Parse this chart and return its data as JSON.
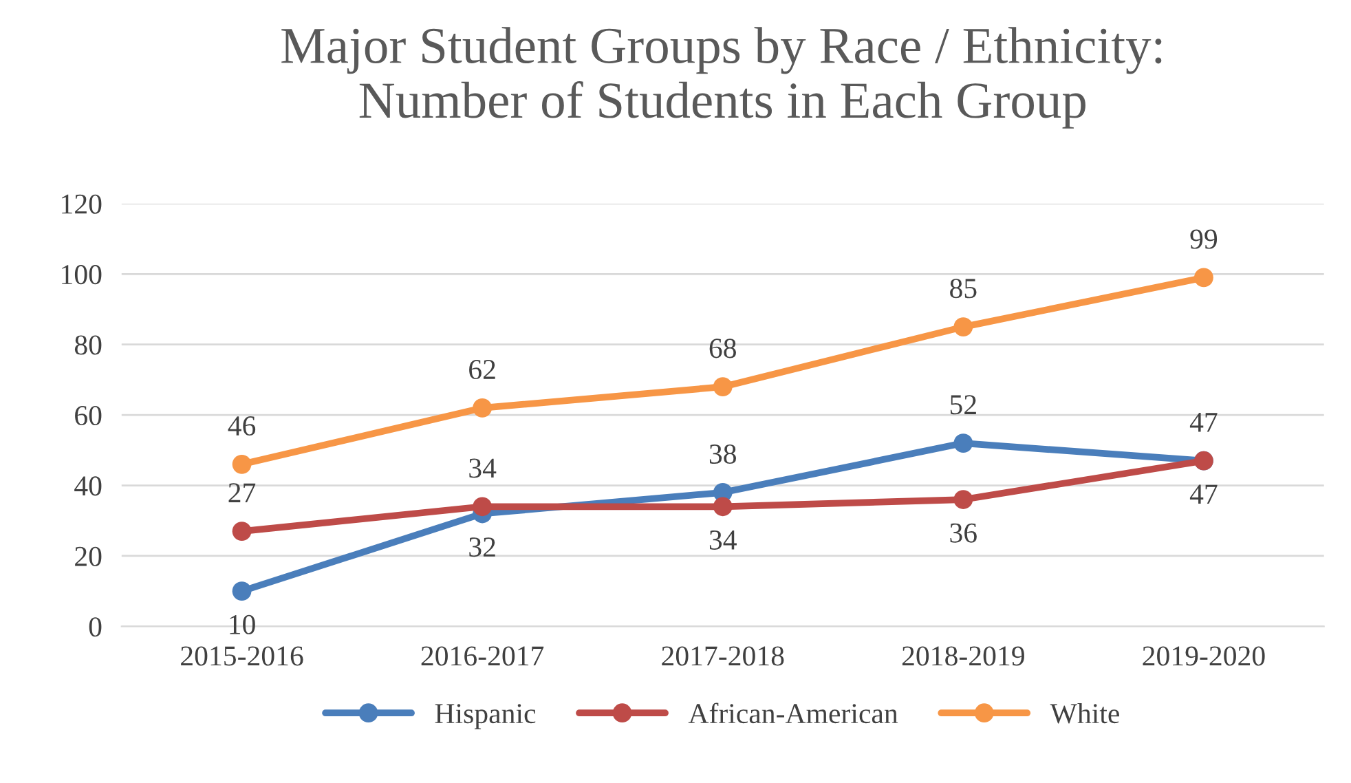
{
  "chart_data": {
    "type": "line",
    "title": "Major Student Groups by Race / Ethnicity:\nNumber of Students in Each Group",
    "categories": [
      "2015-2016",
      "2016-2017",
      "2017-2018",
      "2018-2019",
      "2019-2020"
    ],
    "series": [
      {
        "name": "Hispanic",
        "color": "#4a7ebb",
        "values": [
          10,
          32,
          38,
          52,
          47
        ]
      },
      {
        "name": "African-American",
        "color": "#be4b48",
        "values": [
          27,
          34,
          34,
          36,
          47
        ]
      },
      {
        "name": "White",
        "color": "#f79646",
        "values": [
          46,
          62,
          68,
          85,
          99
        ]
      }
    ],
    "ylim": [
      0,
      120
    ],
    "yticks": [
      0,
      20,
      40,
      60,
      80,
      100,
      120
    ],
    "grid": "y",
    "legend": "bottom",
    "marker": "circle",
    "line_style": "solid",
    "data_labels": true
  }
}
